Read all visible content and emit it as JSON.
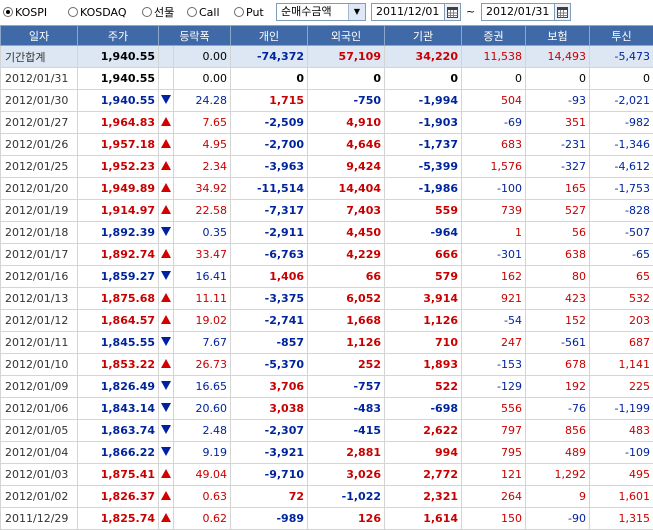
{
  "toolbar": {
    "radios": [
      {
        "label": "KOSPI",
        "selected": true
      },
      {
        "label": "KOSDAQ",
        "selected": false
      },
      {
        "label": "선물",
        "selected": false
      },
      {
        "label": "Call",
        "selected": false
      },
      {
        "label": "Put",
        "selected": false
      }
    ],
    "select_value": "순매수금액",
    "start_date": "2011/12/01",
    "tilde": "~",
    "end_date": "2012/01/31"
  },
  "table": {
    "headers": [
      "일자",
      "주가",
      "등락폭",
      "개인",
      "외국인",
      "기관",
      "증권",
      "보험",
      "투신"
    ],
    "rows": [
      {
        "date": "기간합계",
        "price": "1,940.55",
        "dir": "",
        "chg": "0.00",
        "indiv": "-74,372",
        "foreign": "57,109",
        "inst": "34,220",
        "sec": "11,538",
        "ins": "14,493",
        "trust": "-5,473",
        "price_c": "blk",
        "chg_c": "blk",
        "indiv_c": "blue",
        "foreign_c": "red",
        "inst_c": "red",
        "sec_c": "red",
        "ins_c": "red",
        "trust_c": "blue",
        "total": true
      },
      {
        "date": "2012/01/31",
        "price": "1,940.55",
        "dir": "",
        "chg": "0.00",
        "indiv": "0",
        "foreign": "0",
        "inst": "0",
        "sec": "0",
        "ins": "0",
        "trust": "0",
        "price_c": "blk",
        "chg_c": "blk",
        "indiv_c": "blk",
        "foreign_c": "blk",
        "inst_c": "blk",
        "sec_c": "blk",
        "ins_c": "blk",
        "trust_c": "blk"
      },
      {
        "date": "2012/01/30",
        "price": "1,940.55",
        "dir": "down",
        "chg": "24.28",
        "indiv": "1,715",
        "foreign": "-750",
        "inst": "-1,994",
        "sec": "504",
        "ins": "-93",
        "trust": "-2,021",
        "price_c": "blue",
        "chg_c": "blue",
        "indiv_c": "red",
        "foreign_c": "blue",
        "inst_c": "blue",
        "sec_c": "red",
        "ins_c": "blue",
        "trust_c": "blue"
      },
      {
        "date": "2012/01/27",
        "price": "1,964.83",
        "dir": "up",
        "chg": "7.65",
        "indiv": "-2,509",
        "foreign": "4,910",
        "inst": "-1,903",
        "sec": "-69",
        "ins": "351",
        "trust": "-982",
        "price_c": "red",
        "chg_c": "red",
        "indiv_c": "blue",
        "foreign_c": "red",
        "inst_c": "blue",
        "sec_c": "blue",
        "ins_c": "red",
        "trust_c": "blue"
      },
      {
        "date": "2012/01/26",
        "price": "1,957.18",
        "dir": "up",
        "chg": "4.95",
        "indiv": "-2,700",
        "foreign": "4,646",
        "inst": "-1,737",
        "sec": "683",
        "ins": "-231",
        "trust": "-1,346",
        "price_c": "red",
        "chg_c": "red",
        "indiv_c": "blue",
        "foreign_c": "red",
        "inst_c": "blue",
        "sec_c": "red",
        "ins_c": "blue",
        "trust_c": "blue"
      },
      {
        "date": "2012/01/25",
        "price": "1,952.23",
        "dir": "up",
        "chg": "2.34",
        "indiv": "-3,963",
        "foreign": "9,424",
        "inst": "-5,399",
        "sec": "1,576",
        "ins": "-327",
        "trust": "-4,612",
        "price_c": "red",
        "chg_c": "red",
        "indiv_c": "blue",
        "foreign_c": "red",
        "inst_c": "blue",
        "sec_c": "red",
        "ins_c": "blue",
        "trust_c": "blue"
      },
      {
        "date": "2012/01/20",
        "price": "1,949.89",
        "dir": "up",
        "chg": "34.92",
        "indiv": "-11,514",
        "foreign": "14,404",
        "inst": "-1,986",
        "sec": "-100",
        "ins": "165",
        "trust": "-1,753",
        "price_c": "red",
        "chg_c": "red",
        "indiv_c": "blue",
        "foreign_c": "red",
        "inst_c": "blue",
        "sec_c": "blue",
        "ins_c": "red",
        "trust_c": "blue"
      },
      {
        "date": "2012/01/19",
        "price": "1,914.97",
        "dir": "up",
        "chg": "22.58",
        "indiv": "-7,317",
        "foreign": "7,403",
        "inst": "559",
        "sec": "739",
        "ins": "527",
        "trust": "-828",
        "price_c": "red",
        "chg_c": "red",
        "indiv_c": "blue",
        "foreign_c": "red",
        "inst_c": "red",
        "sec_c": "red",
        "ins_c": "red",
        "trust_c": "blue"
      },
      {
        "date": "2012/01/18",
        "price": "1,892.39",
        "dir": "down",
        "chg": "0.35",
        "indiv": "-2,911",
        "foreign": "4,450",
        "inst": "-964",
        "sec": "1",
        "ins": "56",
        "trust": "-507",
        "price_c": "blue",
        "chg_c": "blue",
        "indiv_c": "blue",
        "foreign_c": "red",
        "inst_c": "blue",
        "sec_c": "red",
        "ins_c": "red",
        "trust_c": "blue"
      },
      {
        "date": "2012/01/17",
        "price": "1,892.74",
        "dir": "up",
        "chg": "33.47",
        "indiv": "-6,763",
        "foreign": "4,229",
        "inst": "666",
        "sec": "-301",
        "ins": "638",
        "trust": "-65",
        "price_c": "red",
        "chg_c": "red",
        "indiv_c": "blue",
        "foreign_c": "red",
        "inst_c": "red",
        "sec_c": "blue",
        "ins_c": "red",
        "trust_c": "blue"
      },
      {
        "date": "2012/01/16",
        "price": "1,859.27",
        "dir": "down",
        "chg": "16.41",
        "indiv": "1,406",
        "foreign": "66",
        "inst": "579",
        "sec": "162",
        "ins": "80",
        "trust": "65",
        "price_c": "blue",
        "chg_c": "blue",
        "indiv_c": "red",
        "foreign_c": "red",
        "inst_c": "red",
        "sec_c": "red",
        "ins_c": "red",
        "trust_c": "red"
      },
      {
        "date": "2012/01/13",
        "price": "1,875.68",
        "dir": "up",
        "chg": "11.11",
        "indiv": "-3,375",
        "foreign": "6,052",
        "inst": "3,914",
        "sec": "921",
        "ins": "423",
        "trust": "532",
        "price_c": "red",
        "chg_c": "red",
        "indiv_c": "blue",
        "foreign_c": "red",
        "inst_c": "red",
        "sec_c": "red",
        "ins_c": "red",
        "trust_c": "red"
      },
      {
        "date": "2012/01/12",
        "price": "1,864.57",
        "dir": "up",
        "chg": "19.02",
        "indiv": "-2,741",
        "foreign": "1,668",
        "inst": "1,126",
        "sec": "-54",
        "ins": "152",
        "trust": "203",
        "price_c": "red",
        "chg_c": "red",
        "indiv_c": "blue",
        "foreign_c": "red",
        "inst_c": "red",
        "sec_c": "blue",
        "ins_c": "red",
        "trust_c": "red"
      },
      {
        "date": "2012/01/11",
        "price": "1,845.55",
        "dir": "down",
        "chg": "7.67",
        "indiv": "-857",
        "foreign": "1,126",
        "inst": "710",
        "sec": "247",
        "ins": "-561",
        "trust": "687",
        "price_c": "blue",
        "chg_c": "blue",
        "indiv_c": "blue",
        "foreign_c": "red",
        "inst_c": "red",
        "sec_c": "red",
        "ins_c": "blue",
        "trust_c": "red"
      },
      {
        "date": "2012/01/10",
        "price": "1,853.22",
        "dir": "up",
        "chg": "26.73",
        "indiv": "-5,370",
        "foreign": "252",
        "inst": "1,893",
        "sec": "-153",
        "ins": "678",
        "trust": "1,141",
        "price_c": "red",
        "chg_c": "red",
        "indiv_c": "blue",
        "foreign_c": "red",
        "inst_c": "red",
        "sec_c": "blue",
        "ins_c": "red",
        "trust_c": "red"
      },
      {
        "date": "2012/01/09",
        "price": "1,826.49",
        "dir": "down",
        "chg": "16.65",
        "indiv": "3,706",
        "foreign": "-757",
        "inst": "522",
        "sec": "-129",
        "ins": "192",
        "trust": "225",
        "price_c": "blue",
        "chg_c": "blue",
        "indiv_c": "red",
        "foreign_c": "blue",
        "inst_c": "red",
        "sec_c": "blue",
        "ins_c": "red",
        "trust_c": "red"
      },
      {
        "date": "2012/01/06",
        "price": "1,843.14",
        "dir": "down",
        "chg": "20.60",
        "indiv": "3,038",
        "foreign": "-483",
        "inst": "-698",
        "sec": "556",
        "ins": "-76",
        "trust": "-1,199",
        "price_c": "blue",
        "chg_c": "blue",
        "indiv_c": "red",
        "foreign_c": "blue",
        "inst_c": "blue",
        "sec_c": "red",
        "ins_c": "blue",
        "trust_c": "blue"
      },
      {
        "date": "2012/01/05",
        "price": "1,863.74",
        "dir": "down",
        "chg": "2.48",
        "indiv": "-2,307",
        "foreign": "-415",
        "inst": "2,622",
        "sec": "797",
        "ins": "856",
        "trust": "483",
        "price_c": "blue",
        "chg_c": "blue",
        "indiv_c": "blue",
        "foreign_c": "blue",
        "inst_c": "red",
        "sec_c": "red",
        "ins_c": "red",
        "trust_c": "red"
      },
      {
        "date": "2012/01/04",
        "price": "1,866.22",
        "dir": "down",
        "chg": "9.19",
        "indiv": "-3,921",
        "foreign": "2,881",
        "inst": "994",
        "sec": "795",
        "ins": "489",
        "trust": "-109",
        "price_c": "blue",
        "chg_c": "blue",
        "indiv_c": "blue",
        "foreign_c": "red",
        "inst_c": "red",
        "sec_c": "red",
        "ins_c": "red",
        "trust_c": "blue"
      },
      {
        "date": "2012/01/03",
        "price": "1,875.41",
        "dir": "up",
        "chg": "49.04",
        "indiv": "-9,710",
        "foreign": "3,026",
        "inst": "2,772",
        "sec": "121",
        "ins": "1,292",
        "trust": "495",
        "price_c": "red",
        "chg_c": "red",
        "indiv_c": "blue",
        "foreign_c": "red",
        "inst_c": "red",
        "sec_c": "red",
        "ins_c": "red",
        "trust_c": "red"
      },
      {
        "date": "2012/01/02",
        "price": "1,826.37",
        "dir": "up",
        "chg": "0.63",
        "indiv": "72",
        "foreign": "-1,022",
        "inst": "2,321",
        "sec": "264",
        "ins": "9",
        "trust": "1,601",
        "price_c": "red",
        "chg_c": "red",
        "indiv_c": "red",
        "foreign_c": "blue",
        "inst_c": "red",
        "sec_c": "red",
        "ins_c": "red",
        "trust_c": "red"
      },
      {
        "date": "2011/12/29",
        "price": "1,825.74",
        "dir": "up",
        "chg": "0.62",
        "indiv": "-989",
        "foreign": "126",
        "inst": "1,614",
        "sec": "150",
        "ins": "-90",
        "trust": "1,315",
        "price_c": "red",
        "chg_c": "red",
        "indiv_c": "blue",
        "foreign_c": "red",
        "inst_c": "red",
        "sec_c": "red",
        "ins_c": "blue",
        "trust_c": "red"
      }
    ]
  }
}
